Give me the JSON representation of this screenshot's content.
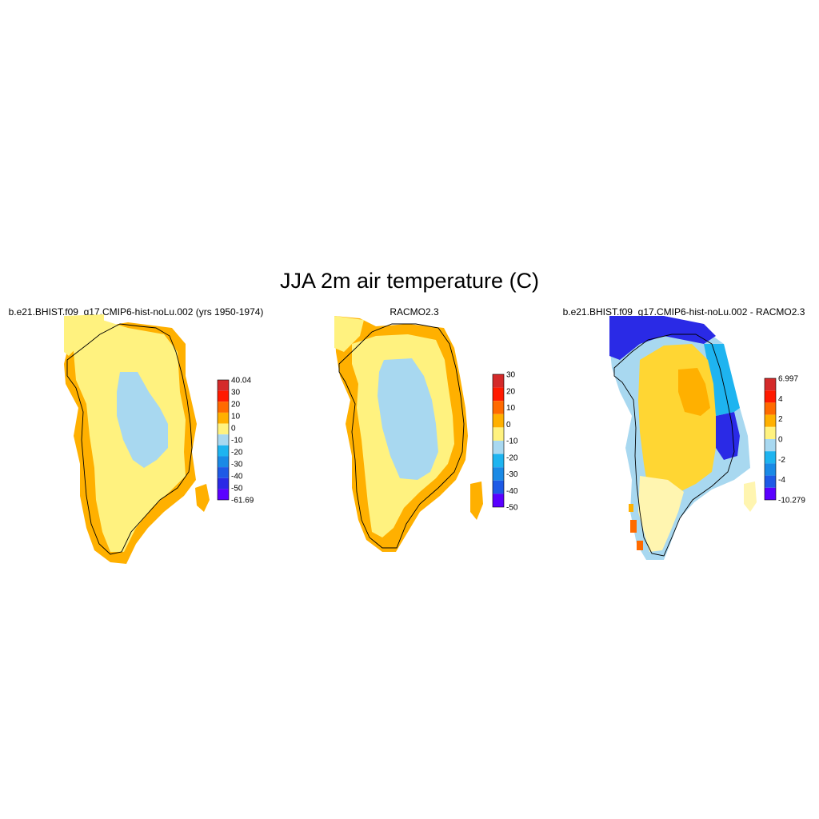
{
  "title": "JJA 2m air temperature (C)",
  "panels": [
    {
      "id": "model",
      "title": "b.e21.BHIST.f09_g17.CMIP6-hist-noLu.002 (yrs 1950-1974)",
      "colorbar": {
        "labels": [
          "40.04",
          "30",
          "20",
          "10",
          "0",
          "-10",
          "-20",
          "-30",
          "-40",
          "-50",
          "-61.69"
        ],
        "colors": [
          "#d42a2a",
          "#ff1a00",
          "#ff6a00",
          "#ffb000",
          "#fff27f",
          "#a8d8f0",
          "#1eb4f0",
          "#1a8ae6",
          "#1e5ae6",
          "#2a2ae6",
          "#5a00ff"
        ]
      }
    },
    {
      "id": "racmo",
      "title": "RACMO2.3",
      "colorbar": {
        "labels": [
          "30",
          "20",
          "10",
          "0",
          "-10",
          "-20",
          "-30",
          "-40",
          "-50"
        ],
        "colors": [
          "#d42a2a",
          "#ff1a00",
          "#ff6a00",
          "#ffb000",
          "#fff27f",
          "#a8d8f0",
          "#1eb4f0",
          "#1a8ae6",
          "#1e5ae6",
          "#5a00ff"
        ]
      }
    },
    {
      "id": "diff",
      "title": "b.e21.BHIST.f09_g17.CMIP6-hist-noLu.002 - RACMO2.3",
      "colorbar": {
        "labels": [
          "6.997",
          "4",
          "2",
          "0",
          "-2",
          "-4",
          "-10.279"
        ],
        "colors": [
          "#d42a2a",
          "#ff1a00",
          "#ff6a00",
          "#ffb000",
          "#fff27f",
          "#a8d8f0",
          "#1eb4f0",
          "#1a8ae6",
          "#1e5ae6",
          "#5a00ff"
        ]
      }
    }
  ],
  "field_colors": {
    "coast_warm": "#ffb000",
    "interior": "#fff27f",
    "summit": "#a8d8f0",
    "diff_main": "#ffd633",
    "diff_core": "#ffb000",
    "diff_light": "#fff5b0",
    "diff_edge_blue": "#1eb4f0",
    "diff_edge_dark": "#2a2ae6",
    "diff_edge_pale": "#a8d8f0"
  }
}
